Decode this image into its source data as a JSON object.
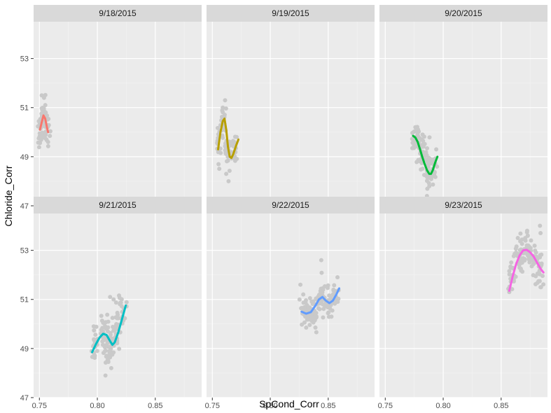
{
  "chart_data": {
    "type": "scatter",
    "layout": "facet-grid",
    "xlabel": "SpCond_Corr",
    "ylabel": "Chloride_Corr",
    "xlim": [
      0.745,
      0.89
    ],
    "ylim": [
      47,
      54.5
    ],
    "x_ticks": [
      0.75,
      0.8,
      0.85
    ],
    "x_tick_labels": [
      "0.75",
      "0.80",
      "0.85"
    ],
    "y_ticks": [
      47,
      49,
      51,
      53
    ],
    "y_tick_labels": [
      "47",
      "49",
      "51",
      "53"
    ],
    "grid": true,
    "point_color": "#c9c9c9",
    "panel_background": "#ebebeb",
    "strip_background": "#d9d9d9",
    "panels": [
      {
        "label": "9/18/2015",
        "color": "#F8766D",
        "cloud": [
          {
            "x": 0.7505,
            "y": 50.1,
            "sx": 0.0012,
            "sy": 0.35,
            "n": 26
          },
          {
            "x": 0.7535,
            "y": 50.7,
            "sx": 0.0012,
            "sy": 0.35,
            "n": 26
          },
          {
            "x": 0.7565,
            "y": 50.2,
            "sx": 0.0012,
            "sy": 0.35,
            "n": 22
          }
        ],
        "extra_points": [
          [
            0.752,
            51.5
          ],
          [
            0.754,
            51.4
          ],
          [
            0.7575,
            49.6
          ],
          [
            0.753,
            49.8
          ]
        ],
        "fit": [
          [
            0.7505,
            50.1
          ],
          [
            0.752,
            50.4
          ],
          [
            0.7535,
            50.68
          ],
          [
            0.755,
            50.55
          ],
          [
            0.7565,
            50.2
          ],
          [
            0.7575,
            50.0
          ]
        ]
      },
      {
        "label": "9/19/2015",
        "color": "#B79F00",
        "cloud": [
          {
            "x": 0.7555,
            "y": 49.5,
            "sx": 0.0012,
            "sy": 0.4,
            "n": 20
          },
          {
            "x": 0.7595,
            "y": 50.4,
            "sx": 0.0012,
            "sy": 0.35,
            "n": 26
          },
          {
            "x": 0.763,
            "y": 49.3,
            "sx": 0.0012,
            "sy": 0.5,
            "n": 30
          },
          {
            "x": 0.768,
            "y": 49.2,
            "sx": 0.0015,
            "sy": 0.3,
            "n": 22
          }
        ],
        "extra_points": [
          [
            0.761,
            51.3
          ],
          [
            0.759,
            51.0
          ],
          [
            0.764,
            48.0
          ],
          [
            0.762,
            48.3
          ],
          [
            0.771,
            49.8
          ]
        ],
        "fit": [
          [
            0.755,
            49.3
          ],
          [
            0.757,
            50.0
          ],
          [
            0.759,
            50.45
          ],
          [
            0.7605,
            50.55
          ],
          [
            0.762,
            50.1
          ],
          [
            0.7635,
            49.4
          ],
          [
            0.765,
            49.0
          ],
          [
            0.7665,
            48.95
          ],
          [
            0.768,
            49.1
          ],
          [
            0.7705,
            49.45
          ],
          [
            0.7725,
            49.7
          ]
        ]
      },
      {
        "label": "9/20/2015",
        "color": "#00BA38",
        "cloud": [
          {
            "x": 0.776,
            "y": 49.7,
            "sx": 0.0018,
            "sy": 0.3,
            "n": 34
          },
          {
            "x": 0.782,
            "y": 49.1,
            "sx": 0.0018,
            "sy": 0.35,
            "n": 34
          },
          {
            "x": 0.787,
            "y": 48.5,
            "sx": 0.0018,
            "sy": 0.35,
            "n": 34
          },
          {
            "x": 0.792,
            "y": 48.6,
            "sx": 0.0015,
            "sy": 0.3,
            "n": 18
          }
        ],
        "extra_points": [
          [
            0.786,
            47.4
          ],
          [
            0.788,
            47.8
          ],
          [
            0.794,
            49.3
          ],
          [
            0.776,
            50.2
          ]
        ],
        "fit": [
          [
            0.774,
            49.85
          ],
          [
            0.776,
            49.78
          ],
          [
            0.778,
            49.6
          ],
          [
            0.78,
            49.3
          ],
          [
            0.782,
            48.98
          ],
          [
            0.784,
            48.7
          ],
          [
            0.786,
            48.45
          ],
          [
            0.788,
            48.3
          ],
          [
            0.7895,
            48.3
          ],
          [
            0.791,
            48.45
          ],
          [
            0.793,
            48.75
          ],
          [
            0.795,
            49.0
          ]
        ]
      },
      {
        "label": "9/21/2015",
        "color": "#00BFC4",
        "cloud": [
          {
            "x": 0.798,
            "y": 49.2,
            "sx": 0.0018,
            "sy": 0.3,
            "n": 26
          },
          {
            "x": 0.806,
            "y": 49.7,
            "sx": 0.002,
            "sy": 0.4,
            "n": 34
          },
          {
            "x": 0.81,
            "y": 49.0,
            "sx": 0.002,
            "sy": 0.45,
            "n": 34
          },
          {
            "x": 0.817,
            "y": 49.8,
            "sx": 0.002,
            "sy": 0.5,
            "n": 30
          },
          {
            "x": 0.822,
            "y": 50.5,
            "sx": 0.0015,
            "sy": 0.3,
            "n": 16
          }
        ],
        "extra_points": [
          [
            0.807,
            47.9
          ],
          [
            0.811,
            51.1
          ],
          [
            0.814,
            51.0
          ],
          [
            0.812,
            48.2
          ]
        ],
        "fit": [
          [
            0.7955,
            48.85
          ],
          [
            0.799,
            49.2
          ],
          [
            0.802,
            49.45
          ],
          [
            0.805,
            49.6
          ],
          [
            0.808,
            49.55
          ],
          [
            0.811,
            49.3
          ],
          [
            0.813,
            49.15
          ],
          [
            0.815,
            49.25
          ],
          [
            0.818,
            49.65
          ],
          [
            0.821,
            50.15
          ],
          [
            0.8245,
            50.75
          ]
        ]
      },
      {
        "label": "9/22/2015",
        "color": "#619CFF",
        "cloud": [
          {
            "x": 0.829,
            "y": 50.5,
            "sx": 0.0022,
            "sy": 0.3,
            "n": 30
          },
          {
            "x": 0.837,
            "y": 50.5,
            "sx": 0.0025,
            "sy": 0.3,
            "n": 34
          },
          {
            "x": 0.843,
            "y": 51.1,
            "sx": 0.002,
            "sy": 0.35,
            "n": 34
          },
          {
            "x": 0.85,
            "y": 50.8,
            "sx": 0.0025,
            "sy": 0.3,
            "n": 30
          },
          {
            "x": 0.856,
            "y": 51.2,
            "sx": 0.0018,
            "sy": 0.25,
            "n": 16
          }
        ],
        "extra_points": [
          [
            0.844,
            52.6
          ],
          [
            0.826,
            51.6
          ],
          [
            0.831,
            49.85
          ],
          [
            0.858,
            51.9
          ]
        ],
        "fit": [
          [
            0.827,
            50.5
          ],
          [
            0.831,
            50.42
          ],
          [
            0.835,
            50.48
          ],
          [
            0.839,
            50.75
          ],
          [
            0.842,
            51.0
          ],
          [
            0.845,
            51.1
          ],
          [
            0.848,
            50.95
          ],
          [
            0.851,
            50.85
          ],
          [
            0.854,
            50.95
          ],
          [
            0.857,
            51.2
          ],
          [
            0.8595,
            51.45
          ]
        ]
      },
      {
        "label": "9/23/2015",
        "color": "#F564E3",
        "cloud": [
          {
            "x": 0.859,
            "y": 51.9,
            "sx": 0.0015,
            "sy": 0.4,
            "n": 20
          },
          {
            "x": 0.866,
            "y": 52.8,
            "sx": 0.002,
            "sy": 0.35,
            "n": 32
          },
          {
            "x": 0.872,
            "y": 53.0,
            "sx": 0.002,
            "sy": 0.3,
            "n": 34
          },
          {
            "x": 0.879,
            "y": 52.5,
            "sx": 0.002,
            "sy": 0.35,
            "n": 30
          },
          {
            "x": 0.884,
            "y": 52.0,
            "sx": 0.0015,
            "sy": 0.35,
            "n": 16
          }
        ],
        "extra_points": [
          [
            0.8835,
            54.0
          ],
          [
            0.884,
            53.7
          ],
          [
            0.873,
            53.6
          ],
          [
            0.857,
            51.3
          ],
          [
            0.884,
            51.5
          ]
        ],
        "fit": [
          [
            0.857,
            51.35
          ],
          [
            0.86,
            51.95
          ],
          [
            0.863,
            52.45
          ],
          [
            0.866,
            52.8
          ],
          [
            0.869,
            53.0
          ],
          [
            0.872,
            53.02
          ],
          [
            0.875,
            52.92
          ],
          [
            0.878,
            52.75
          ],
          [
            0.881,
            52.5
          ],
          [
            0.884,
            52.25
          ],
          [
            0.8865,
            52.1
          ]
        ]
      }
    ]
  }
}
